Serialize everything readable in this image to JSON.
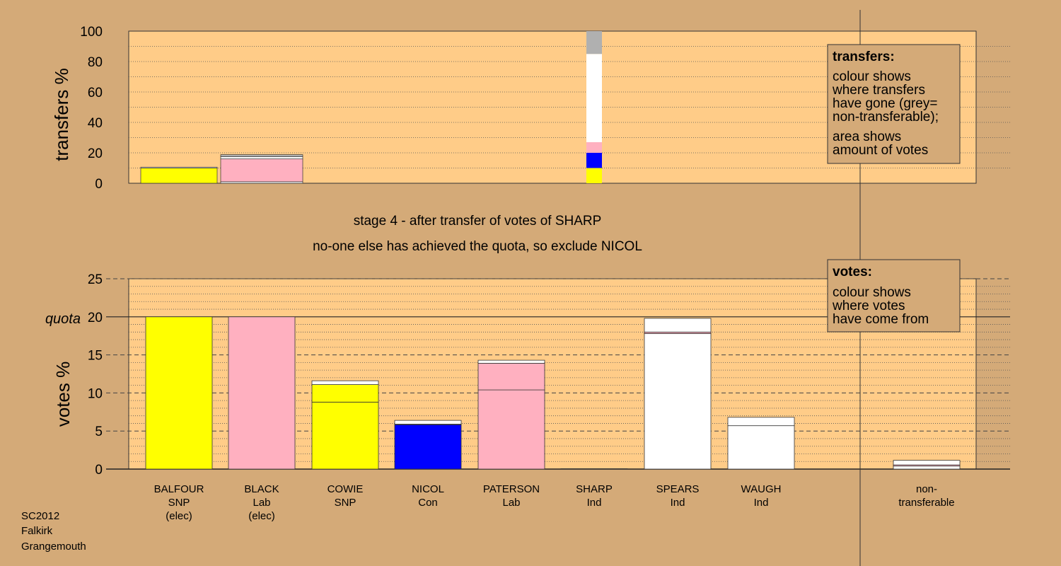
{
  "chart_data": {
    "type": "bar",
    "footer": [
      "SC2012",
      "Falkirk",
      "Grangemouth"
    ],
    "stage_title": "stage 4 - after transfer of votes of SHARP",
    "stage_subtitle": "no-one else has achieved the quota, so exclude NICOL",
    "colors": {
      "SNP": "#ffff00",
      "Lab": "#ffb0c0",
      "Con": "#0000ff",
      "Ind": "#ffffff",
      "nontransferable": "#b0b0b0",
      "plot_bg": "#ffcc88",
      "page_bg": "#d4aa78"
    },
    "categories": [
      {
        "name": "BALFOUR",
        "party": "SNP",
        "status": "(elec)"
      },
      {
        "name": "BLACK",
        "party": "Lab",
        "status": "(elec)"
      },
      {
        "name": "COWIE",
        "party": "SNP",
        "status": ""
      },
      {
        "name": "NICOL",
        "party": "Con",
        "status": ""
      },
      {
        "name": "PATERSON",
        "party": "Lab",
        "status": ""
      },
      {
        "name": "SHARP",
        "party": "Ind",
        "status": ""
      },
      {
        "name": "SPEARS",
        "party": "Ind",
        "status": ""
      },
      {
        "name": "WAUGH",
        "party": "Ind",
        "status": ""
      },
      {
        "name": "non-",
        "party": "transferable",
        "status": ""
      }
    ],
    "transfers": {
      "ylabel": "transfers %",
      "ylim": [
        0,
        100
      ],
      "yticks": [
        0,
        20,
        40,
        60,
        80,
        100
      ],
      "bars": [
        {
          "candidate": "BALFOUR",
          "segments": [
            {
              "from": "SNP",
              "value": 10
            },
            {
              "from": "Ind",
              "value": 0.6
            }
          ]
        },
        {
          "candidate": "BLACK",
          "segments": [
            {
              "from": "Ind",
              "value": 1
            },
            {
              "from": "Lab",
              "value": 15
            },
            {
              "from": "Ind",
              "value": 1.5
            },
            {
              "from": "nontransferable",
              "value": 1.3
            }
          ]
        },
        {
          "candidate": "SHARP",
          "segments": [
            {
              "from": "SNP",
              "value": 10
            },
            {
              "from": "Con",
              "value": 10
            },
            {
              "from": "Lab",
              "value": 7
            },
            {
              "from": "Ind",
              "value": 58
            },
            {
              "from": "nontransferable",
              "value": 15
            }
          ]
        }
      ],
      "legend_title": "transfers:",
      "legend_lines1": [
        "colour shows",
        "where transfers",
        "have gone (grey=",
        "non-transferable);"
      ],
      "legend_lines2": [
        "area shows",
        "amount of votes"
      ]
    },
    "votes": {
      "ylabel": "votes %",
      "ylim": [
        0,
        25
      ],
      "yticks": [
        0,
        5,
        10,
        15,
        20,
        25
      ],
      "quota": 20,
      "quota_label": "quota",
      "bars": [
        {
          "candidate": "BALFOUR",
          "segments": [
            {
              "from": "SNP",
              "value": 20
            }
          ]
        },
        {
          "candidate": "BLACK",
          "segments": [
            {
              "from": "Lab",
              "value": 20
            }
          ]
        },
        {
          "candidate": "COWIE",
          "segments": [
            {
              "from": "SNP",
              "value": 8.8
            },
            {
              "from": "SNP",
              "value": 2.3
            },
            {
              "from": "Ind",
              "value": 0.5
            }
          ]
        },
        {
          "candidate": "NICOL",
          "segments": [
            {
              "from": "Con",
              "value": 5.8
            },
            {
              "from": "Con",
              "value": 0.1
            },
            {
              "from": "Ind",
              "value": 0.5
            }
          ]
        },
        {
          "candidate": "PATERSON",
          "segments": [
            {
              "from": "Lab",
              "value": 10.4
            },
            {
              "from": "Lab",
              "value": 3.5
            },
            {
              "from": "Ind",
              "value": 0.4
            }
          ]
        },
        {
          "candidate": "SHARP",
          "segments": [
            {
              "from": "Ind",
              "value": 0.05
            }
          ]
        },
        {
          "candidate": "SPEARS",
          "segments": [
            {
              "from": "Ind",
              "value": 17.8
            },
            {
              "from": "Lab",
              "value": 0.2
            },
            {
              "from": "Ind",
              "value": 1.8
            }
          ]
        },
        {
          "candidate": "WAUGH",
          "segments": [
            {
              "from": "Ind",
              "value": 5.7
            },
            {
              "from": "Ind",
              "value": 1.1
            }
          ]
        },
        {
          "candidate": "non-transferable",
          "segments": [
            {
              "from": "Ind",
              "value": 0.4
            },
            {
              "from": "Lab",
              "value": 0.15
            },
            {
              "from": "Ind",
              "value": 0.6
            }
          ]
        }
      ],
      "legend_title": "votes:",
      "legend_lines1": [
        "colour shows",
        "where votes",
        "have come from"
      ]
    }
  }
}
